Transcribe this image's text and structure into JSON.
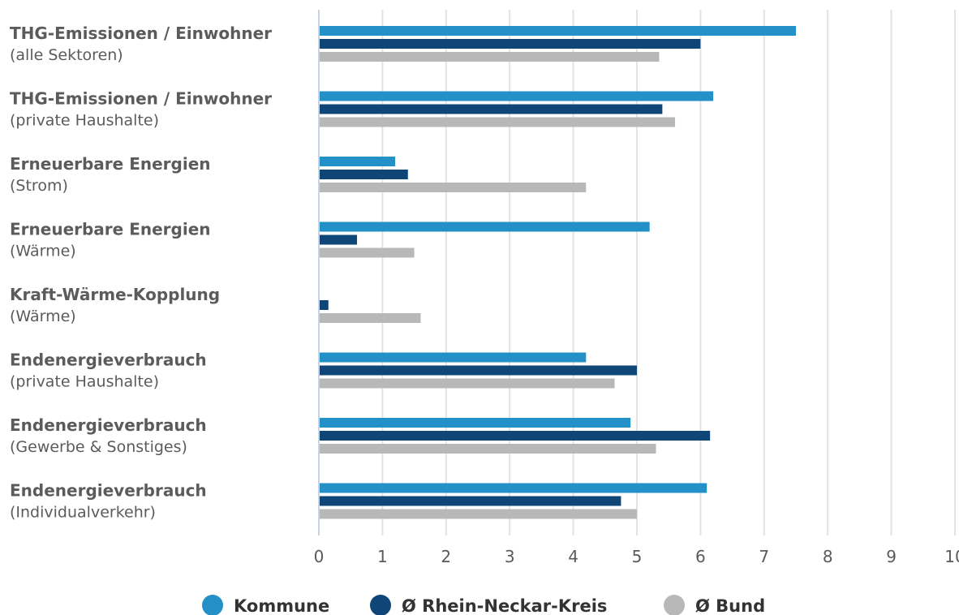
{
  "chart_data": {
    "type": "bar",
    "orientation": "horizontal",
    "categories": [
      [
        "THG-Emissionen / Einwohner",
        "(alle Sektoren)"
      ],
      [
        "THG-Emissionen / Einwohner",
        "(private Haushalte)"
      ],
      [
        "Erneuerbare Energien",
        "(Strom)"
      ],
      [
        "Erneuerbare Energien",
        "(Wärme)"
      ],
      [
        "Kraft-Wärme-Kopplung",
        "(Wärme)"
      ],
      [
        "Endenergieverbrauch",
        "(private Haushalte)"
      ],
      [
        "Endenergieverbrauch",
        "(Gewerbe & Sonstiges)"
      ],
      [
        "Endenergieverbrauch",
        "(Individualverkehr)"
      ]
    ],
    "series": [
      {
        "name": "Kommune",
        "color": "#2490c8",
        "values": [
          7.5,
          6.2,
          1.2,
          5.2,
          0,
          4.2,
          4.9,
          6.1
        ]
      },
      {
        "name": "Ø Rhein-Neckar-Kreis",
        "color": "#0f4577",
        "values": [
          6.0,
          5.4,
          1.4,
          0.6,
          0.15,
          5.0,
          6.15,
          4.75
        ]
      },
      {
        "name": "Ø Bund",
        "color": "#b8b8b8",
        "values": [
          5.35,
          5.6,
          4.2,
          1.5,
          1.6,
          4.65,
          5.3,
          5.0
        ]
      }
    ],
    "xlim": [
      0,
      10
    ],
    "xticks": [
      0,
      1,
      2,
      3,
      4,
      5,
      6,
      7,
      8,
      9,
      10
    ],
    "grid": true,
    "legend_position": "bottom"
  }
}
